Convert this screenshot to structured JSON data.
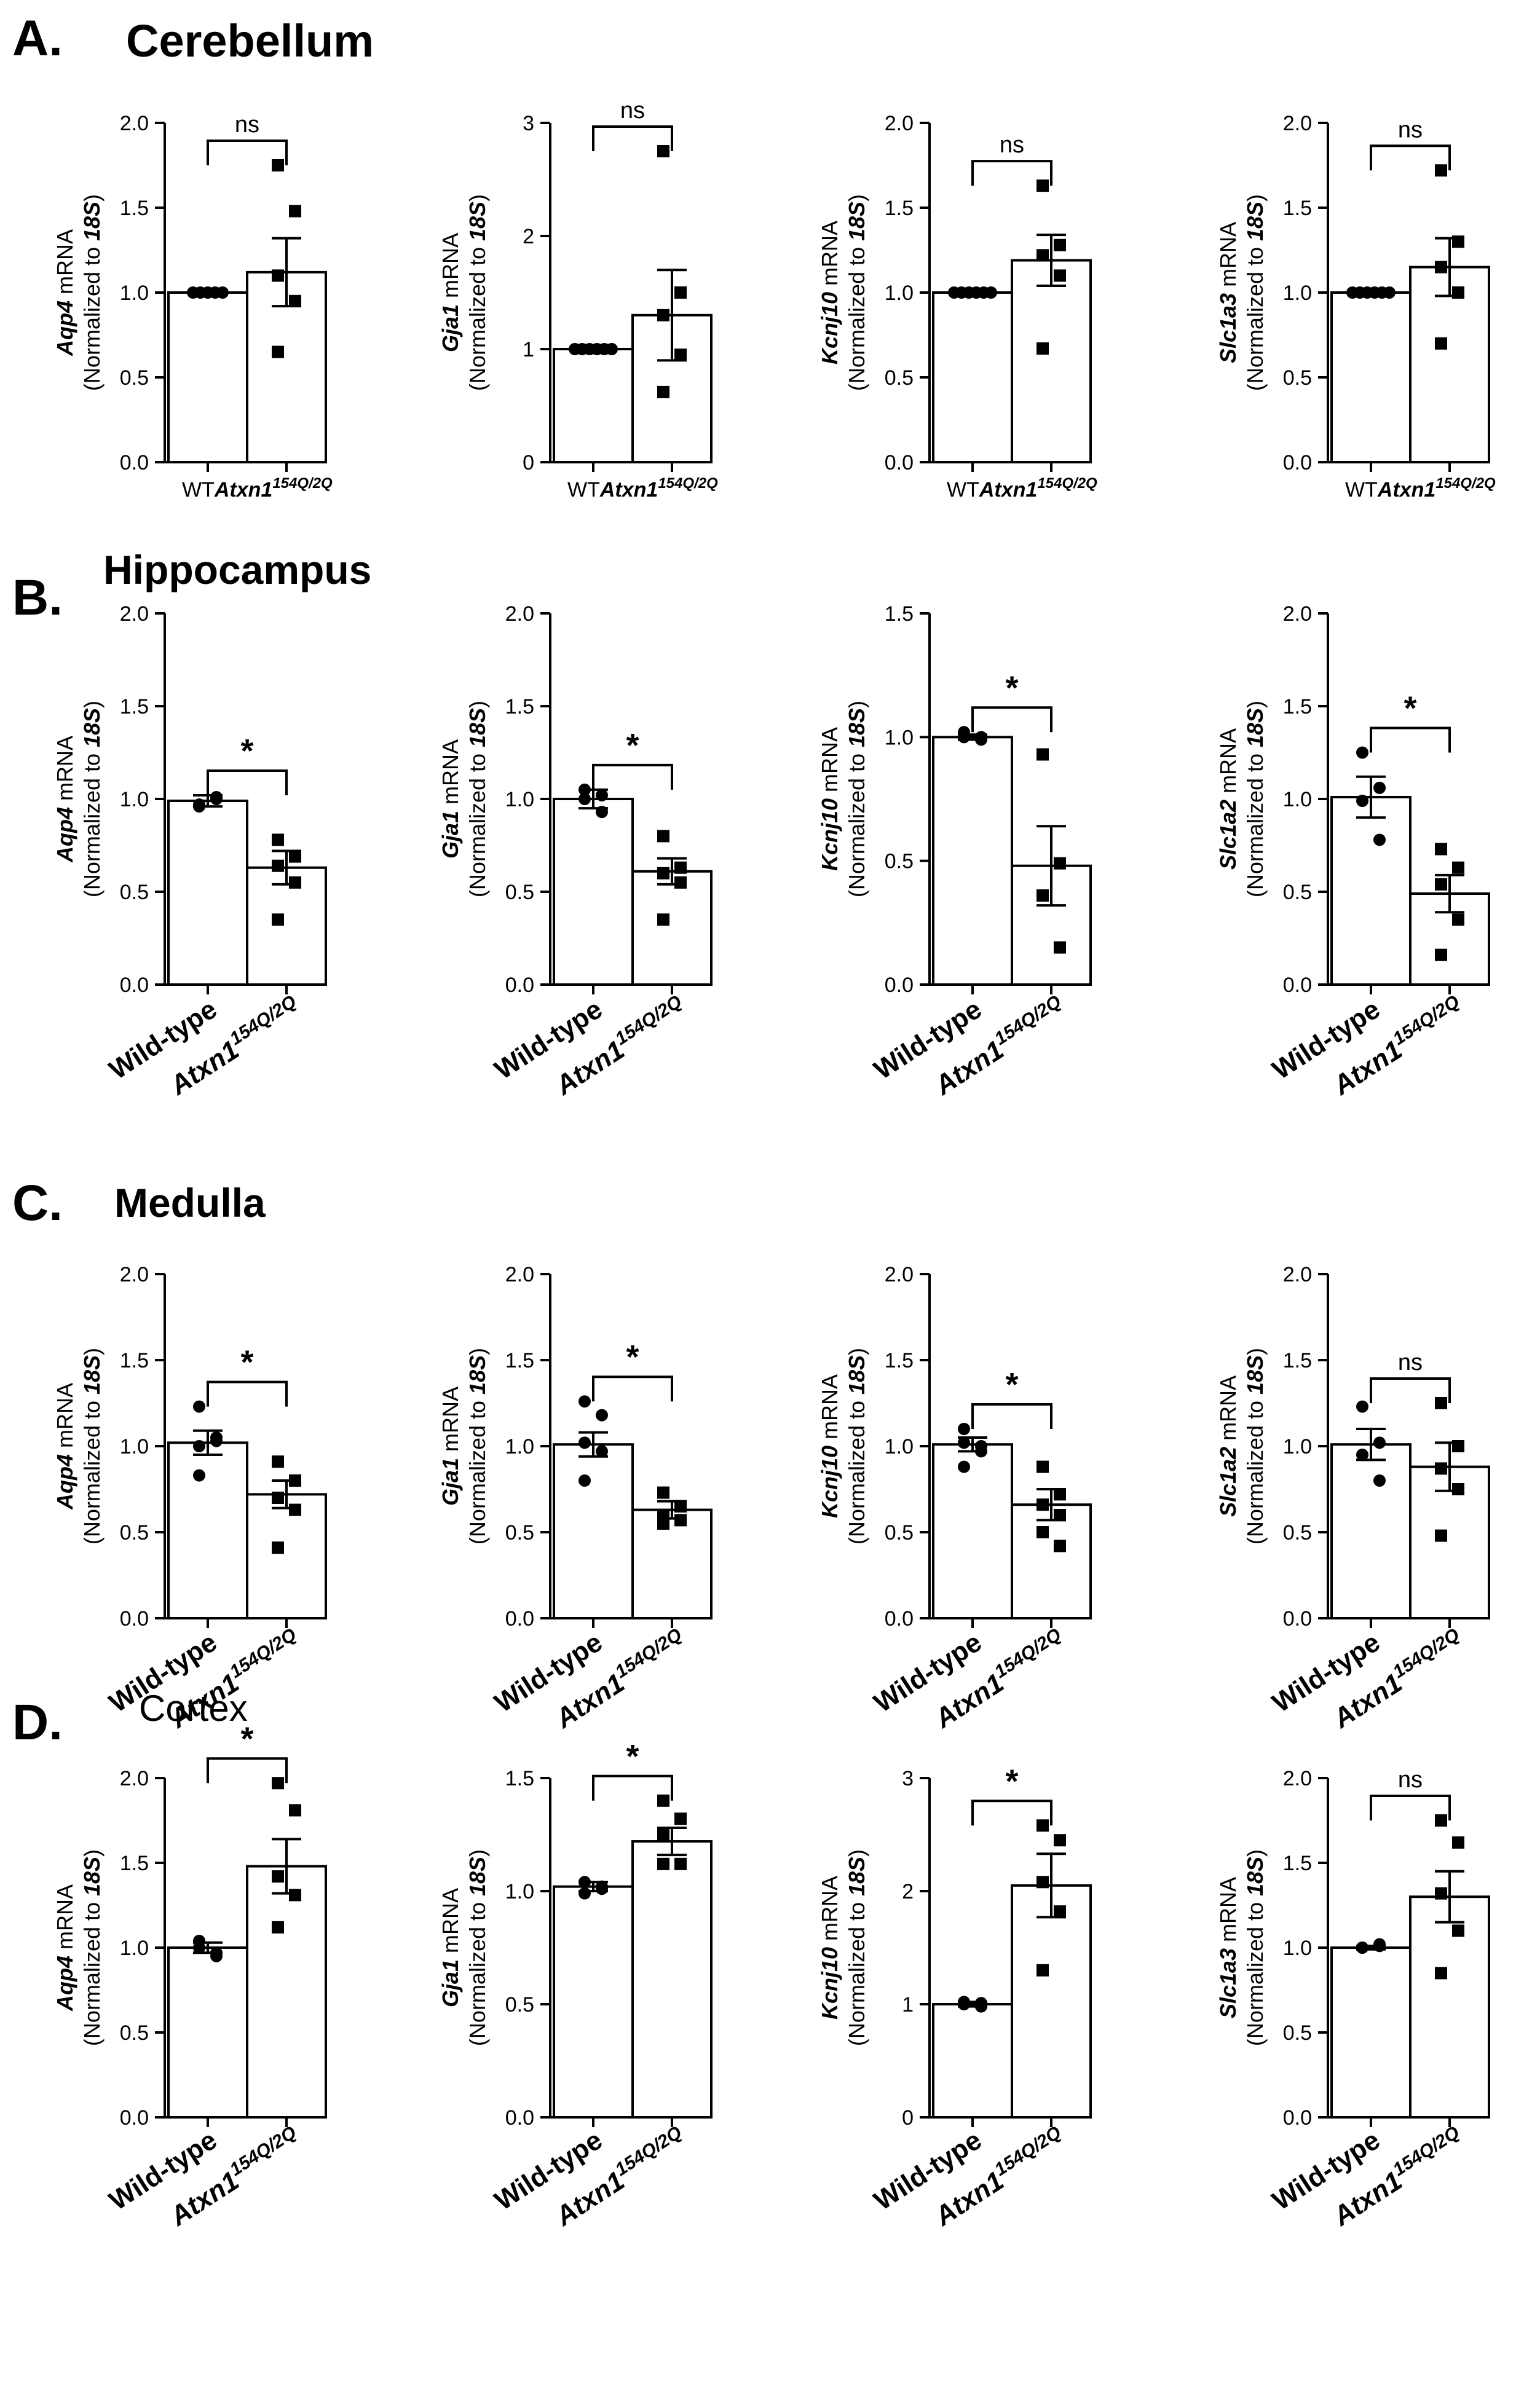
{
  "figure": {
    "sections": [
      {
        "letter": "A.",
        "title": "Cerebellum"
      },
      {
        "letter": "B.",
        "title": "Hippocampus"
      },
      {
        "letter": "C.",
        "title": "Medulla"
      },
      {
        "letter": "D.",
        "title": "Cortex"
      }
    ],
    "ylabel_line2": "(Normalized to 18S)",
    "mrna_suffix": " mRNA",
    "wt_short": "WT",
    "wt_long": "Wild-type",
    "mutant": {
      "base": "Atxn1",
      "sup": "154Q/2Q"
    }
  },
  "chart_data": [
    {
      "type": "bar",
      "title": "",
      "gene": "Aqp4",
      "ylabel": "Aqp4 mRNA (Normalized to 18S)",
      "categories": [
        "WT",
        "Atxn1 154Q/2Q"
      ],
      "values": [
        1.0,
        1.12
      ],
      "sem": [
        0,
        0.2
      ],
      "ylim": [
        0,
        2
      ],
      "yticks": [
        "0.0",
        "0.5",
        "1.0",
        "1.5",
        "2.0"
      ],
      "points": [
        [
          1.0,
          1.0,
          1.0,
          1.0,
          1.0
        ],
        [
          1.75,
          1.48,
          1.1,
          0.95,
          0.65
        ]
      ],
      "significance": "ns"
    },
    {
      "type": "bar",
      "title": "",
      "gene": "Gja1",
      "ylabel": "Gja1 mRNA (Normalized to 18S)",
      "categories": [
        "WT",
        "Atxn1 154Q/2Q"
      ],
      "values": [
        1.0,
        1.3
      ],
      "sem": [
        0,
        0.4
      ],
      "ylim": [
        0,
        3
      ],
      "yticks": [
        "0",
        "1",
        "2",
        "3"
      ],
      "points": [
        [
          1.0,
          1.0,
          1.0,
          1.0,
          1.0,
          1.0
        ],
        [
          2.75,
          1.5,
          1.3,
          0.95,
          0.62
        ]
      ],
      "significance": "ns"
    },
    {
      "type": "bar",
      "title": "",
      "gene": "Kcnj10",
      "ylabel": "Kcnj10 mRNA (Normalized to 18S)",
      "categories": [
        "WT",
        "Atxn1 154Q/2Q"
      ],
      "values": [
        1.0,
        1.19
      ],
      "sem": [
        0,
        0.15
      ],
      "ylim": [
        0,
        2
      ],
      "yticks": [
        "0.0",
        "0.5",
        "1.0",
        "1.5",
        "2.0"
      ],
      "points": [
        [
          1.0,
          1.0,
          1.0,
          1.0,
          1.0,
          1.0
        ],
        [
          1.63,
          1.28,
          1.22,
          1.1,
          0.67
        ]
      ],
      "significance": "ns"
    },
    {
      "type": "bar",
      "title": "",
      "gene": "Slc1a3",
      "ylabel": "Slc1a3 mRNA (Normalized to 18S)",
      "categories": [
        "WT",
        "Atxn1 154Q/2Q"
      ],
      "values": [
        1.0,
        1.15
      ],
      "sem": [
        0,
        0.17
      ],
      "ylim": [
        0,
        2
      ],
      "yticks": [
        "0.0",
        "0.5",
        "1.0",
        "1.5",
        "2.0"
      ],
      "points": [
        [
          1.0,
          1.0,
          1.0,
          1.0,
          1.0,
          1.0
        ],
        [
          1.72,
          1.3,
          1.15,
          1.0,
          0.7
        ]
      ],
      "significance": "ns"
    },
    {
      "type": "bar",
      "title": "",
      "gene": "Aqp4",
      "ylabel": "Aqp4 mRNA (Normalized to 18S)",
      "categories": [
        "Wild-type",
        "Atxn1 154Q/2Q"
      ],
      "values": [
        0.99,
        0.63
      ],
      "sem": [
        0.03,
        0.09
      ],
      "ylim": [
        0,
        2
      ],
      "yticks": [
        "0.0",
        "0.5",
        "1.0",
        "1.5",
        "2.0"
      ],
      "points": [
        [
          0.96,
          1.01,
          0.97,
          1.0
        ],
        [
          0.78,
          0.69,
          0.64,
          0.55,
          0.35
        ]
      ],
      "significance": "*"
    },
    {
      "type": "bar",
      "title": "",
      "gene": "Gja1",
      "ylabel": "Gja1 mRNA (Normalized to 18S)",
      "categories": [
        "Wild-type",
        "Atxn1 154Q/2Q"
      ],
      "values": [
        1.0,
        0.61
      ],
      "sem": [
        0.05,
        0.07
      ],
      "ylim": [
        0,
        2
      ],
      "yticks": [
        "0.0",
        "0.5",
        "1.0",
        "1.5",
        "2.0"
      ],
      "points": [
        [
          1.05,
          0.93,
          1.0,
          1.02
        ],
        [
          0.8,
          0.63,
          0.6,
          0.55,
          0.35
        ]
      ],
      "significance": "*"
    },
    {
      "type": "bar",
      "title": "",
      "gene": "Kcnj10",
      "ylabel": "Kcnj10 mRNA (Normalized to 18S)",
      "categories": [
        "Wild-type",
        "Atxn1 154Q/2Q"
      ],
      "values": [
        1.0,
        0.48
      ],
      "sem": [
        0.01,
        0.16
      ],
      "ylim": [
        0,
        1.5
      ],
      "yticks": [
        "0.0",
        "0.5",
        "1.0",
        "1.5"
      ],
      "points": [
        [
          1.02,
          0.99,
          1.0,
          1.0
        ],
        [
          0.93,
          0.49,
          0.36,
          0.15
        ]
      ],
      "significance": "*"
    },
    {
      "type": "bar",
      "title": "",
      "gene": "Slc1a2",
      "ylabel": "Slc1a2 mRNA (Normalized to 18S)",
      "categories": [
        "Wild-type",
        "Atxn1 154Q/2Q"
      ],
      "values": [
        1.01,
        0.49
      ],
      "sem": [
        0.11,
        0.1
      ],
      "ylim": [
        0,
        2
      ],
      "yticks": [
        "0.0",
        "0.5",
        "1.0",
        "1.5",
        "2.0"
      ],
      "points": [
        [
          1.25,
          1.06,
          0.99,
          0.78
        ],
        [
          0.73,
          0.63,
          0.54,
          0.35,
          0.16
        ]
      ],
      "significance": "*"
    },
    {
      "type": "bar",
      "title": "",
      "gene": "Aqp4",
      "ylabel": "Aqp4 mRNA (Normalized to 18S)",
      "categories": [
        "Wild-type",
        "Atxn1 154Q/2Q"
      ],
      "values": [
        1.02,
        0.72
      ],
      "sem": [
        0.07,
        0.08
      ],
      "ylim": [
        0,
        2
      ],
      "yticks": [
        "0.0",
        "0.5",
        "1.0",
        "1.5",
        "2.0"
      ],
      "points": [
        [
          1.23,
          1.05,
          1.0,
          1.03,
          0.83
        ],
        [
          0.91,
          0.8,
          0.7,
          0.63,
          0.41
        ]
      ],
      "significance": "*"
    },
    {
      "type": "bar",
      "title": "",
      "gene": "Gja1",
      "ylabel": "Gja1 mRNA (Normalized to 18S)",
      "categories": [
        "Wild-type",
        "Atxn1 154Q/2Q"
      ],
      "values": [
        1.01,
        0.63
      ],
      "sem": [
        0.07,
        0.05
      ],
      "ylim": [
        0,
        2
      ],
      "yticks": [
        "0.0",
        "0.5",
        "1.0",
        "1.5",
        "2.0"
      ],
      "points": [
        [
          1.26,
          1.18,
          1.02,
          0.97,
          0.8
        ],
        [
          0.73,
          0.65,
          0.59,
          0.57,
          0.55
        ]
      ],
      "significance": "*"
    },
    {
      "type": "bar",
      "title": "",
      "gene": "Kcnj10",
      "ylabel": "Kcnj10 mRNA (Normalized to 18S)",
      "categories": [
        "Wild-type",
        "Atxn1 154Q/2Q"
      ],
      "values": [
        1.01,
        0.66
      ],
      "sem": [
        0.04,
        0.09
      ],
      "ylim": [
        0,
        2
      ],
      "yticks": [
        "0.0",
        "0.5",
        "1.0",
        "1.5",
        "2.0"
      ],
      "points": [
        [
          1.1,
          1.0,
          1.02,
          0.97,
          0.88
        ],
        [
          0.88,
          0.72,
          0.66,
          0.6,
          0.5,
          0.42
        ]
      ],
      "significance": "*"
    },
    {
      "type": "bar",
      "title": "",
      "gene": "Slc1a2",
      "ylabel": "Slc1a2 mRNA (Normalized to 18S)",
      "categories": [
        "Wild-type",
        "Atxn1 154Q/2Q"
      ],
      "values": [
        1.01,
        0.88
      ],
      "sem": [
        0.09,
        0.14
      ],
      "ylim": [
        0,
        2
      ],
      "yticks": [
        "0.0",
        "0.5",
        "1.0",
        "1.5",
        "2.0"
      ],
      "points": [
        [
          1.23,
          1.02,
          0.95,
          0.8
        ],
        [
          1.25,
          1.0,
          0.87,
          0.75,
          0.48
        ]
      ],
      "significance": "ns"
    },
    {
      "type": "bar",
      "title": "",
      "gene": "Aqp4",
      "ylabel": "Aqp4 mRNA (Normalized to 18S)",
      "categories": [
        "Wild-type",
        "Atxn1 154Q/2Q"
      ],
      "values": [
        1.0,
        1.48
      ],
      "sem": [
        0.03,
        0.16
      ],
      "ylim": [
        0,
        2
      ],
      "yticks": [
        "0.0",
        "0.5",
        "1.0",
        "1.5",
        "2.0"
      ],
      "points": [
        [
          1.04,
          0.97,
          1.0,
          0.95
        ],
        [
          1.97,
          1.81,
          1.42,
          1.31,
          1.12
        ]
      ],
      "significance": "*"
    },
    {
      "type": "bar",
      "title": "",
      "gene": "Gja1",
      "ylabel": "Gja1 mRNA (Normalized to 18S)",
      "categories": [
        "Wild-type",
        "Atxn1 154Q/2Q"
      ],
      "values": [
        1.02,
        1.22
      ],
      "sem": [
        0.02,
        0.06
      ],
      "ylim": [
        0,
        1.5
      ],
      "yticks": [
        "0.0",
        "0.5",
        "1.0",
        "1.5"
      ],
      "points": [
        [
          1.04,
          1.01,
          0.99,
          1.02
        ],
        [
          1.4,
          1.32,
          1.25,
          1.12,
          1.12
        ]
      ],
      "significance": "*"
    },
    {
      "type": "bar",
      "title": "",
      "gene": "Kcnj10",
      "ylabel": "Kcnj10 mRNA (Normalized to 18S)",
      "categories": [
        "Wild-type",
        "Atxn1 154Q/2Q"
      ],
      "values": [
        1.0,
        2.05
      ],
      "sem": [
        0.02,
        0.28
      ],
      "ylim": [
        0,
        3
      ],
      "yticks": [
        "0",
        "1",
        "2",
        "3"
      ],
      "points": [
        [
          1.02,
          0.98,
          1.0,
          1.01
        ],
        [
          2.58,
          2.45,
          2.08,
          1.82,
          1.3
        ]
      ],
      "significance": "*"
    },
    {
      "type": "bar",
      "title": "",
      "gene": "Slc1a3",
      "ylabel": "Slc1a3 mRNA (Normalized to 18S)",
      "categories": [
        "Wild-type",
        "Atxn1 154Q/2Q"
      ],
      "values": [
        1.0,
        1.3
      ],
      "sem": [
        0.01,
        0.15
      ],
      "ylim": [
        0,
        2
      ],
      "yticks": [
        "0.0",
        "0.5",
        "1.0",
        "1.5",
        "2.0"
      ],
      "points": [
        [
          1.0,
          1.01,
          1.0,
          1.02
        ],
        [
          1.75,
          1.62,
          1.32,
          1.1,
          0.85
        ]
      ],
      "significance": "ns"
    }
  ]
}
